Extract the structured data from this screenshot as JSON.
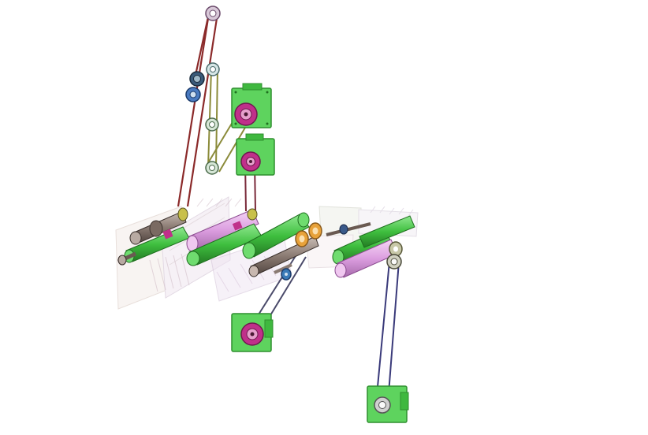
{
  "colors": {
    "background": "#ffffff",
    "motor_green": "#5ed35e",
    "motor_green_dark": "#2f8f2f",
    "roller_green": "#4cc94c",
    "roller_pink": "#e3a6e6",
    "belt_red": "#8b2a2a",
    "belt_blue": "#3a3a7a",
    "belt_olive": "#8b8b3a",
    "pulley_magenta": "#c0308a",
    "pulley_orange": "#e8a23a",
    "pulley_blue": "#3a7ab8",
    "shaft_grey": "#8a7a72",
    "frame_ghost": "#e8dcd6"
  },
  "components": {
    "motors": [
      "motor-top",
      "motor-middle",
      "motor-bottom-left",
      "motor-bottom-right"
    ],
    "belts": [
      "belt-tall-red",
      "belt-olive",
      "belt-middle",
      "belt-bottom-left",
      "belt-bottom-right"
    ]
  }
}
